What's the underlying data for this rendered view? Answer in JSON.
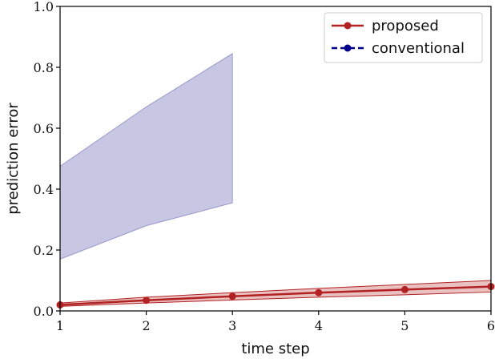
{
  "chart_data": {
    "type": "line",
    "title": "",
    "xlabel": "time step",
    "ylabel": "prediction error",
    "xlim": [
      1,
      6
    ],
    "ylim": [
      0.0,
      1.0
    ],
    "xticks": [
      "1",
      "2",
      "3",
      "4",
      "5",
      "6"
    ],
    "yticks": [
      "0.0",
      "0.2",
      "0.4",
      "0.6",
      "0.8",
      "1.0"
    ],
    "grid": false,
    "legend": {
      "position": "top-right",
      "entries": [
        "proposed",
        "conventional"
      ]
    },
    "series": [
      {
        "name": "proposed",
        "color": "#b22222",
        "line_style": "solid",
        "marker": "circle",
        "x": [
          1,
          2,
          3,
          4,
          5,
          6
        ],
        "y": [
          0.02,
          0.035,
          0.048,
          0.06,
          0.07,
          0.08
        ],
        "band_lower": [
          0.015,
          0.026,
          0.036,
          0.045,
          0.053,
          0.062
        ],
        "band_upper": [
          0.026,
          0.045,
          0.06,
          0.074,
          0.087,
          0.1
        ]
      },
      {
        "name": "conventional",
        "color": "#00008b",
        "band_color": "#9999cc",
        "line_style": "dashed",
        "marker": "circle",
        "x": [
          1,
          2,
          3
        ],
        "y": [
          null,
          null,
          null
        ],
        "band_lower": [
          0.17,
          0.28,
          0.355
        ],
        "band_upper": [
          0.475,
          0.67,
          0.845
        ]
      }
    ]
  }
}
